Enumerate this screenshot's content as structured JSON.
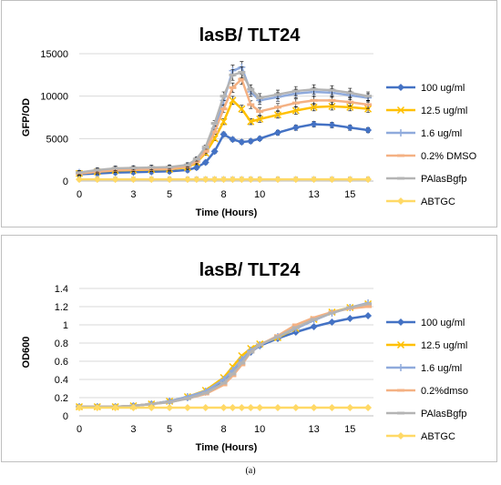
{
  "caption": "(a)",
  "chart_data": [
    {
      "type": "line",
      "title": "lasB/ TLT24",
      "xlabel": "Time (Hours)",
      "ylabel": "GFP/OD",
      "xlim": [
        0,
        16.3
      ],
      "ylim": [
        0,
        15000
      ],
      "yticks": [
        0,
        5000,
        10000,
        15000
      ],
      "xticks": [
        0,
        3,
        5,
        8,
        10,
        13,
        15
      ],
      "grid": "horizontal",
      "legend": "right",
      "error_bars": true,
      "series": [
        {
          "name": "100 ug/ml",
          "color": "#4472c4",
          "marker": "diamond",
          "x": [
            0,
            1,
            2,
            3,
            4,
            5,
            6,
            6.5,
            7,
            7.5,
            8,
            8.5,
            9,
            9.5,
            10,
            11,
            12,
            13,
            14,
            15,
            16
          ],
          "y": [
            800,
            900,
            1000,
            1050,
            1100,
            1150,
            1300,
            1600,
            2200,
            3500,
            5500,
            4900,
            4600,
            4700,
            5000,
            5700,
            6300,
            6700,
            6600,
            6300,
            6000
          ]
        },
        {
          "name": "12.5 ug/ml",
          "color": "#ffc000",
          "marker": "x",
          "x": [
            0,
            1,
            2,
            3,
            4,
            5,
            6,
            6.5,
            7,
            7.5,
            8,
            8.5,
            9,
            9.5,
            10,
            11,
            12,
            13,
            14,
            15,
            16
          ],
          "y": [
            900,
            1100,
            1250,
            1300,
            1350,
            1400,
            1600,
            2200,
            3300,
            5000,
            7000,
            9500,
            8500,
            7000,
            7300,
            7800,
            8300,
            8700,
            8800,
            8700,
            8500
          ]
        },
        {
          "name": "1.6 ug/ml",
          "color": "#8faadc",
          "marker": "plus",
          "x": [
            0,
            1,
            2,
            3,
            4,
            5,
            6,
            6.5,
            7,
            7.5,
            8,
            8.5,
            9,
            9.5,
            10,
            11,
            12,
            13,
            14,
            15,
            16
          ],
          "y": [
            1000,
            1200,
            1400,
            1450,
            1500,
            1550,
            1800,
            2500,
            3800,
            6200,
            9500,
            13000,
            13400,
            10500,
            9500,
            9900,
            10300,
            10500,
            10400,
            10100,
            9800
          ]
        },
        {
          "name": "0.2% DMSO",
          "color": "#f4b183",
          "marker": "dash",
          "x": [
            0,
            1,
            2,
            3,
            4,
            5,
            6,
            6.5,
            7,
            7.5,
            8,
            8.5,
            9,
            9.5,
            10,
            11,
            12,
            13,
            14,
            15,
            16
          ],
          "y": [
            900,
            1100,
            1300,
            1350,
            1400,
            1450,
            1700,
            2300,
            3500,
            5800,
            8500,
            11000,
            12000,
            9000,
            8200,
            8700,
            9200,
            9500,
            9500,
            9300,
            9000
          ]
        },
        {
          "name": "PAlasBgfp",
          "color": "#b4b4b4",
          "marker": "dash",
          "x": [
            0,
            1,
            2,
            3,
            4,
            5,
            6,
            6.5,
            7,
            7.5,
            8,
            8.5,
            9,
            9.5,
            10,
            11,
            12,
            13,
            14,
            15,
            16
          ],
          "y": [
            1000,
            1300,
            1500,
            1550,
            1600,
            1650,
            1900,
            2600,
            4000,
            6800,
            10000,
            12500,
            12800,
            10800,
            9800,
            10200,
            10600,
            10800,
            10700,
            10400,
            10000
          ]
        },
        {
          "name": "ABTGC",
          "color": "#ffd966",
          "marker": "diamond",
          "x": [
            0,
            1,
            2,
            3,
            4,
            5,
            6,
            6.5,
            7,
            7.5,
            8,
            8.5,
            9,
            9.5,
            10,
            11,
            12,
            13,
            14,
            15,
            16
          ],
          "y": [
            200,
            200,
            200,
            200,
            200,
            200,
            200,
            200,
            200,
            200,
            200,
            200,
            200,
            200,
            200,
            200,
            200,
            200,
            200,
            200,
            200
          ]
        }
      ]
    },
    {
      "type": "line",
      "title": "lasB/ TLT24",
      "xlabel": "Time (Hours)",
      "ylabel": "OD600",
      "xlim": [
        0,
        16.3
      ],
      "ylim": [
        0,
        1.4
      ],
      "yticks": [
        0,
        0.2,
        0.4,
        0.6,
        0.8,
        1,
        1.2,
        1.4
      ],
      "xticks": [
        0,
        3,
        5,
        8,
        10,
        13,
        15
      ],
      "grid": "horizontal",
      "legend": "right",
      "error_bars": false,
      "series": [
        {
          "name": "100 ug/ml",
          "color": "#4472c4",
          "marker": "diamond",
          "x": [
            0,
            1,
            2,
            3,
            4,
            5,
            6,
            7,
            8,
            8.5,
            9,
            9.5,
            10,
            11,
            12,
            13,
            14,
            15,
            16
          ],
          "y": [
            0.1,
            0.1,
            0.1,
            0.11,
            0.13,
            0.16,
            0.2,
            0.26,
            0.38,
            0.48,
            0.6,
            0.7,
            0.77,
            0.85,
            0.92,
            0.98,
            1.03,
            1.07,
            1.1
          ]
        },
        {
          "name": "12.5 ug/ml",
          "color": "#ffc000",
          "marker": "x",
          "x": [
            0,
            1,
            2,
            3,
            4,
            5,
            6,
            7,
            8,
            8.5,
            9,
            9.5,
            10,
            11,
            12,
            13,
            14,
            15,
            16
          ],
          "y": [
            0.1,
            0.1,
            0.1,
            0.11,
            0.13,
            0.16,
            0.21,
            0.28,
            0.42,
            0.54,
            0.66,
            0.74,
            0.79,
            0.86,
            0.96,
            1.06,
            1.14,
            1.19,
            1.23
          ]
        },
        {
          "name": "1.6 ug/ml",
          "color": "#8faadc",
          "marker": "plus",
          "x": [
            0,
            1,
            2,
            3,
            4,
            5,
            6,
            7,
            8,
            8.5,
            9,
            9.5,
            10,
            11,
            12,
            13,
            14,
            15,
            16
          ],
          "y": [
            0.1,
            0.1,
            0.1,
            0.11,
            0.13,
            0.16,
            0.21,
            0.27,
            0.4,
            0.5,
            0.62,
            0.72,
            0.78,
            0.87,
            0.96,
            1.05,
            1.13,
            1.19,
            1.24
          ]
        },
        {
          "name": "0.2%dmso",
          "color": "#f4b183",
          "marker": "dash",
          "x": [
            0,
            1,
            2,
            3,
            4,
            5,
            6,
            7,
            8,
            8.5,
            9,
            9.5,
            10,
            11,
            12,
            13,
            14,
            15,
            16
          ],
          "y": [
            0.1,
            0.1,
            0.1,
            0.11,
            0.13,
            0.15,
            0.19,
            0.24,
            0.34,
            0.44,
            0.56,
            0.7,
            0.78,
            0.88,
            1.0,
            1.08,
            1.14,
            1.18,
            1.2
          ]
        },
        {
          "name": "PAlasBgfp",
          "color": "#b4b4b4",
          "marker": "dash",
          "x": [
            0,
            1,
            2,
            3,
            4,
            5,
            6,
            7,
            8,
            8.5,
            9,
            9.5,
            10,
            11,
            12,
            13,
            14,
            15,
            16
          ],
          "y": [
            0.1,
            0.1,
            0.1,
            0.11,
            0.13,
            0.15,
            0.19,
            0.25,
            0.36,
            0.46,
            0.58,
            0.7,
            0.78,
            0.87,
            0.97,
            1.06,
            1.13,
            1.19,
            1.23
          ]
        },
        {
          "name": "ABTGC",
          "color": "#ffd966",
          "marker": "diamond",
          "x": [
            0,
            1,
            2,
            3,
            4,
            5,
            6,
            7,
            8,
            8.5,
            9,
            9.5,
            10,
            11,
            12,
            13,
            14,
            15,
            16
          ],
          "y": [
            0.09,
            0.09,
            0.09,
            0.09,
            0.09,
            0.09,
            0.09,
            0.09,
            0.09,
            0.09,
            0.09,
            0.09,
            0.09,
            0.09,
            0.09,
            0.09,
            0.09,
            0.09,
            0.09
          ]
        }
      ]
    }
  ]
}
